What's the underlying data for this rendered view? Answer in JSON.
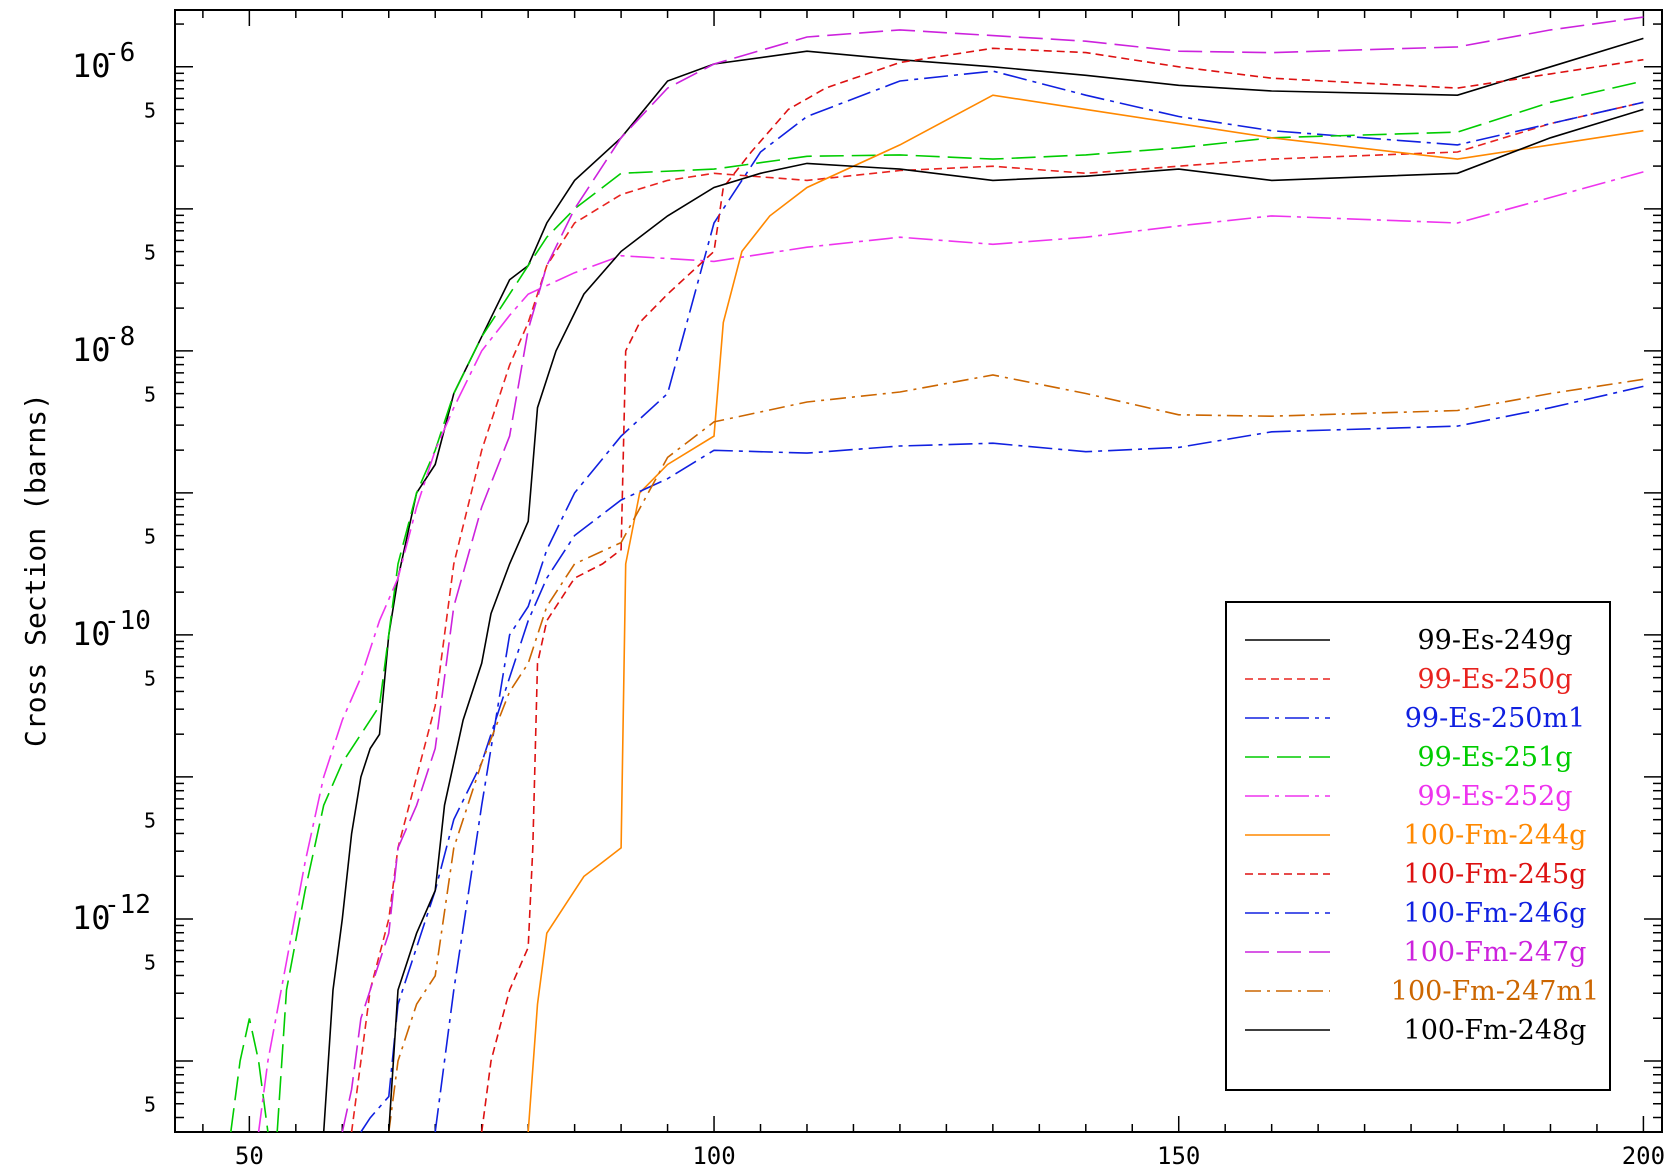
{
  "chart_data": {
    "type": "line",
    "title": "",
    "xlabel": "",
    "ylabel": "Cross Section (barns)",
    "xlim": [
      42,
      202
    ],
    "ylim_log10": [
      -13.5,
      -5.6
    ],
    "y_scale": "log",
    "x_ticks": [
      50,
      100,
      150,
      200
    ],
    "x_tick_labels": [
      "50",
      "100",
      "150",
      "200"
    ],
    "y_decade_labels": [
      {
        "log10": -6,
        "base": "10",
        "exp": "-6"
      },
      {
        "log10": -8,
        "base": "10",
        "exp": "-8"
      },
      {
        "log10": -10,
        "base": "10",
        "exp": "-10"
      },
      {
        "log10": -12,
        "base": "10",
        "exp": "-12"
      }
    ],
    "y_five_marks": [
      -5.3,
      -6.3,
      -7.3,
      -8.3,
      -9.3,
      -10.3,
      -11.3,
      -12.3,
      -13.3
    ],
    "five_label": "5",
    "legend_position": "bottom-right",
    "series": [
      {
        "name": "99-Es-249g",
        "color": "#000000",
        "dash": "",
        "points": [
          [
            58,
            -13.6
          ],
          [
            59,
            -12.5
          ],
          [
            60,
            -12.0
          ],
          [
            61,
            -11.4
          ],
          [
            62,
            -11.0
          ],
          [
            63,
            -10.8
          ],
          [
            64,
            -10.7
          ],
          [
            65,
            -10.0
          ],
          [
            66,
            -9.6
          ],
          [
            68,
            -9.0
          ],
          [
            70,
            -8.8
          ],
          [
            72,
            -8.3
          ],
          [
            75,
            -7.9
          ],
          [
            78,
            -7.5
          ],
          [
            80,
            -7.4
          ],
          [
            82,
            -7.1
          ],
          [
            85,
            -6.8
          ],
          [
            90,
            -6.5
          ],
          [
            95,
            -6.1
          ],
          [
            100,
            -5.98
          ],
          [
            110,
            -5.89
          ],
          [
            120,
            -5.95
          ],
          [
            130,
            -6.0
          ],
          [
            140,
            -6.06
          ],
          [
            150,
            -6.13
          ],
          [
            160,
            -6.17
          ],
          [
            180,
            -6.2
          ],
          [
            190,
            -6.0
          ],
          [
            200,
            -5.8
          ]
        ]
      },
      {
        "name": "99-Es-250g",
        "color": "#e8231f",
        "dash": "8,5",
        "points": [
          [
            61,
            -13.6
          ],
          [
            63,
            -12.5
          ],
          [
            65,
            -12.0
          ],
          [
            66,
            -11.5
          ],
          [
            68,
            -11.0
          ],
          [
            70,
            -10.5
          ],
          [
            72,
            -9.5
          ],
          [
            75,
            -8.7
          ],
          [
            78,
            -8.1
          ],
          [
            80,
            -7.8
          ],
          [
            82,
            -7.4
          ],
          [
            85,
            -7.1
          ],
          [
            90,
            -6.9
          ],
          [
            95,
            -6.8
          ],
          [
            100,
            -6.75
          ],
          [
            110,
            -6.8
          ],
          [
            120,
            -6.73
          ],
          [
            130,
            -6.7
          ],
          [
            140,
            -6.75
          ],
          [
            150,
            -6.7
          ],
          [
            160,
            -6.65
          ],
          [
            180,
            -6.6
          ],
          [
            190,
            -6.4
          ],
          [
            200,
            -6.25
          ]
        ]
      },
      {
        "name": "99-Es-250m1",
        "color": "#1020e0",
        "dash": "24,6,4,6",
        "points": [
          [
            70,
            -13.6
          ],
          [
            72,
            -12.5
          ],
          [
            75,
            -11.2
          ],
          [
            78,
            -10.0
          ],
          [
            80,
            -9.8
          ],
          [
            82,
            -9.4
          ],
          [
            85,
            -9.0
          ],
          [
            90,
            -8.6
          ],
          [
            95,
            -8.3
          ],
          [
            100,
            -7.1
          ],
          [
            105,
            -6.6
          ],
          [
            110,
            -6.35
          ],
          [
            120,
            -6.1
          ],
          [
            130,
            -6.03
          ],
          [
            140,
            -6.2
          ],
          [
            150,
            -6.35
          ],
          [
            160,
            -6.45
          ],
          [
            180,
            -6.55
          ],
          [
            190,
            -6.4
          ],
          [
            200,
            -6.25
          ]
        ]
      },
      {
        "name": "99-Es-251g",
        "color": "#00cc00",
        "dash": "24,8",
        "points": [
          [
            48,
            -13.6
          ],
          [
            49,
            -13.0
          ],
          [
            50,
            -12.7
          ],
          [
            51,
            -13.0
          ],
          [
            52,
            -13.6
          ]
        ],
        "points2": [
          [
            53,
            -13.6
          ],
          [
            54,
            -12.5
          ],
          [
            56,
            -11.8
          ],
          [
            58,
            -11.2
          ],
          [
            60,
            -10.9
          ],
          [
            62,
            -10.7
          ],
          [
            64,
            -10.5
          ],
          [
            66,
            -9.5
          ],
          [
            68,
            -9.0
          ],
          [
            70,
            -8.7
          ],
          [
            72,
            -8.3
          ],
          [
            75,
            -7.9
          ],
          [
            78,
            -7.6
          ],
          [
            80,
            -7.4
          ],
          [
            82,
            -7.2
          ],
          [
            85,
            -7.0
          ],
          [
            90,
            -6.75
          ],
          [
            100,
            -6.72
          ],
          [
            110,
            -6.63
          ],
          [
            120,
            -6.62
          ],
          [
            130,
            -6.65
          ],
          [
            140,
            -6.62
          ],
          [
            150,
            -6.57
          ],
          [
            160,
            -6.5
          ],
          [
            180,
            -6.46
          ],
          [
            190,
            -6.25
          ],
          [
            200,
            -6.1
          ]
        ]
      },
      {
        "name": "99-Es-252g",
        "color": "#ee33ee",
        "dash": "24,6,4,6",
        "points": [
          [
            51,
            -13.6
          ],
          [
            52,
            -13.0
          ],
          [
            54,
            -12.3
          ],
          [
            56,
            -11.6
          ],
          [
            58,
            -11.0
          ],
          [
            60,
            -10.6
          ],
          [
            62,
            -10.3
          ],
          [
            64,
            -9.9
          ],
          [
            66,
            -9.6
          ],
          [
            68,
            -9.1
          ],
          [
            70,
            -8.7
          ],
          [
            72,
            -8.4
          ],
          [
            75,
            -8.0
          ],
          [
            78,
            -7.75
          ],
          [
            80,
            -7.6
          ],
          [
            85,
            -7.45
          ],
          [
            90,
            -7.33
          ],
          [
            100,
            -7.37
          ],
          [
            110,
            -7.27
          ],
          [
            120,
            -7.2
          ],
          [
            130,
            -7.25
          ],
          [
            140,
            -7.2
          ],
          [
            150,
            -7.12
          ],
          [
            160,
            -7.05
          ],
          [
            180,
            -7.1
          ],
          [
            190,
            -6.92
          ],
          [
            200,
            -6.74
          ]
        ]
      },
      {
        "name": "100-Fm-244g",
        "color": "#ff8800",
        "dash": "",
        "points": [
          [
            80,
            -13.6
          ],
          [
            81,
            -12.6
          ],
          [
            82,
            -12.1
          ],
          [
            84,
            -11.9
          ],
          [
            86,
            -11.7
          ],
          [
            88,
            -11.6
          ],
          [
            90,
            -11.5
          ],
          [
            90.5,
            -9.5
          ],
          [
            92,
            -9.0
          ],
          [
            95,
            -8.8
          ],
          [
            100,
            -8.6
          ],
          [
            101,
            -7.8
          ],
          [
            103,
            -7.3
          ],
          [
            106,
            -7.05
          ],
          [
            110,
            -6.85
          ],
          [
            120,
            -6.55
          ],
          [
            130,
            -6.2
          ],
          [
            140,
            -6.3
          ],
          [
            150,
            -6.4
          ],
          [
            160,
            -6.5
          ],
          [
            180,
            -6.65
          ],
          [
            190,
            -6.55
          ],
          [
            200,
            -6.45
          ]
        ]
      },
      {
        "name": "100-Fm-245g",
        "color": "#dd1111",
        "dash": "8,5",
        "points": [
          [
            75,
            -13.6
          ],
          [
            76,
            -13.0
          ],
          [
            78,
            -12.5
          ],
          [
            80,
            -12.2
          ],
          [
            80.5,
            -11.5
          ],
          [
            81,
            -10.2
          ],
          [
            82,
            -9.9
          ],
          [
            85,
            -9.6
          ],
          [
            88,
            -9.5
          ],
          [
            90,
            -9.4
          ],
          [
            90.5,
            -8.0
          ],
          [
            92,
            -7.8
          ],
          [
            95,
            -7.6
          ],
          [
            100,
            -7.3
          ],
          [
            101,
            -6.85
          ],
          [
            104,
            -6.6
          ],
          [
            108,
            -6.3
          ],
          [
            112,
            -6.15
          ],
          [
            120,
            -5.97
          ],
          [
            130,
            -5.87
          ],
          [
            140,
            -5.9
          ],
          [
            150,
            -6.0
          ],
          [
            160,
            -6.08
          ],
          [
            180,
            -6.15
          ],
          [
            190,
            -6.05
          ],
          [
            200,
            -5.95
          ]
        ]
      },
      {
        "name": "100-Fm-246g",
        "color": "#1020e0",
        "dash": "24,6,4,6",
        "points": [
          [
            62,
            -13.6
          ],
          [
            63,
            -13.4
          ],
          [
            65,
            -13.25
          ],
          [
            66,
            -12.6
          ],
          [
            68,
            -12.2
          ],
          [
            70,
            -11.8
          ],
          [
            72,
            -11.3
          ],
          [
            75,
            -10.9
          ],
          [
            78,
            -10.3
          ],
          [
            80,
            -9.9
          ],
          [
            82,
            -9.6
          ],
          [
            85,
            -9.3
          ],
          [
            90,
            -9.05
          ],
          [
            95,
            -8.9
          ],
          [
            100,
            -8.7
          ],
          [
            110,
            -8.72
          ],
          [
            120,
            -8.67
          ],
          [
            130,
            -8.65
          ],
          [
            140,
            -8.71
          ],
          [
            150,
            -8.68
          ],
          [
            160,
            -8.57
          ],
          [
            180,
            -8.53
          ],
          [
            190,
            -8.4
          ],
          [
            200,
            -8.25
          ]
        ]
      },
      {
        "name": "100-Fm-247g",
        "color": "#cc22dd",
        "dash": "24,8",
        "points": [
          [
            60,
            -13.6
          ],
          [
            61,
            -13.2
          ],
          [
            62,
            -12.7
          ],
          [
            64,
            -12.3
          ],
          [
            65,
            -12.1
          ],
          [
            66,
            -11.5
          ],
          [
            68,
            -11.2
          ],
          [
            70,
            -10.8
          ],
          [
            72,
            -9.8
          ],
          [
            75,
            -9.1
          ],
          [
            78,
            -8.6
          ],
          [
            80,
            -7.85
          ],
          [
            82,
            -7.4
          ],
          [
            85,
            -7.0
          ],
          [
            90,
            -6.5
          ],
          [
            95,
            -6.15
          ],
          [
            100,
            -5.98
          ],
          [
            110,
            -5.79
          ],
          [
            120,
            -5.74
          ],
          [
            130,
            -5.78
          ],
          [
            140,
            -5.82
          ],
          [
            150,
            -5.89
          ],
          [
            160,
            -5.9
          ],
          [
            180,
            -5.86
          ],
          [
            190,
            -5.74
          ],
          [
            200,
            -5.65
          ]
        ]
      },
      {
        "name": "100-Fm-247m1",
        "color": "#cc6600",
        "dash": "16,6,3,6",
        "points": [
          [
            65,
            -13.6
          ],
          [
            66,
            -13.0
          ],
          [
            68,
            -12.6
          ],
          [
            70,
            -12.4
          ],
          [
            72,
            -11.5
          ],
          [
            75,
            -10.9
          ],
          [
            78,
            -10.4
          ],
          [
            80,
            -10.2
          ],
          [
            82,
            -9.8
          ],
          [
            85,
            -9.5
          ],
          [
            90,
            -9.35
          ],
          [
            95,
            -8.75
          ],
          [
            100,
            -8.5
          ],
          [
            110,
            -8.36
          ],
          [
            120,
            -8.29
          ],
          [
            130,
            -8.17
          ],
          [
            140,
            -8.3
          ],
          [
            150,
            -8.45
          ],
          [
            160,
            -8.46
          ],
          [
            180,
            -8.42
          ],
          [
            190,
            -8.3
          ],
          [
            200,
            -8.2
          ]
        ]
      },
      {
        "name": "100-Fm-248g",
        "color": "#000000",
        "dash": "",
        "points": [
          [
            65,
            -13.6
          ],
          [
            66,
            -12.5
          ],
          [
            68,
            -12.1
          ],
          [
            70,
            -11.8
          ],
          [
            71,
            -11.2
          ],
          [
            73,
            -10.6
          ],
          [
            75,
            -10.2
          ],
          [
            76,
            -9.85
          ],
          [
            78,
            -9.5
          ],
          [
            80,
            -9.2
          ],
          [
            81,
            -8.4
          ],
          [
            83,
            -8.0
          ],
          [
            86,
            -7.6
          ],
          [
            90,
            -7.3
          ],
          [
            95,
            -7.05
          ],
          [
            100,
            -6.85
          ],
          [
            105,
            -6.75
          ],
          [
            110,
            -6.68
          ],
          [
            120,
            -6.72
          ],
          [
            130,
            -6.8
          ],
          [
            140,
            -6.77
          ],
          [
            150,
            -6.72
          ],
          [
            160,
            -6.8
          ],
          [
            180,
            -6.75
          ],
          [
            190,
            -6.5
          ],
          [
            200,
            -6.3
          ]
        ]
      }
    ]
  }
}
